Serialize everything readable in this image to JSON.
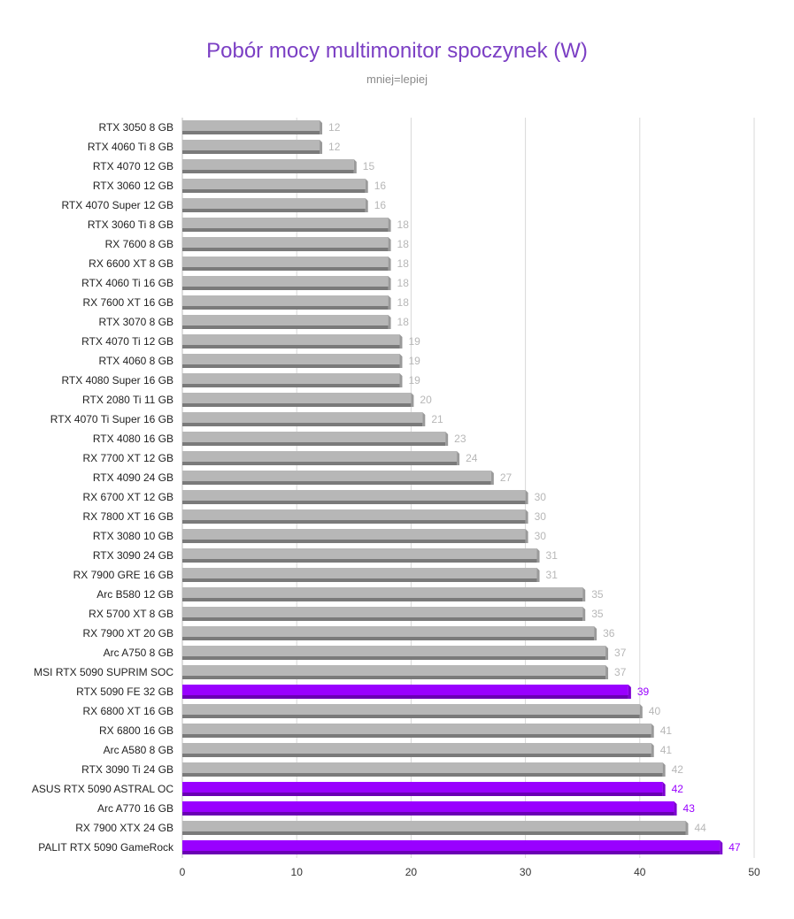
{
  "chart_data": {
    "type": "bar",
    "orientation": "horizontal",
    "title": "Pobór mocy multimonitor spoczynek (W)",
    "subtitle": "mniej=lepiej",
    "xlim": [
      0,
      50
    ],
    "x_ticks": [
      0,
      10,
      20,
      30,
      40,
      50
    ],
    "grid": true,
    "colors": {
      "default": "#b7b7b7",
      "highlight": "#9900ff",
      "label_default": "#b7b7b7",
      "label_highlight": "#9900ff"
    },
    "categories": [
      "RTX 3050 8 GB",
      "RTX 4060 Ti 8 GB",
      "RTX 4070 12 GB",
      "RTX 3060 12 GB",
      "RTX 4070 Super 12 GB",
      "RTX 3060 Ti 8 GB",
      "RX 7600 8 GB",
      "RX 6600 XT 8 GB",
      "RTX 4060 Ti 16 GB",
      "RX 7600 XT 16 GB",
      "RTX 3070 8 GB",
      "RTX 4070 Ti 12 GB",
      "RTX 4060 8 GB",
      "RTX 4080 Super 16 GB",
      "RTX 2080 Ti 11 GB",
      "RTX 4070 Ti Super 16 GB",
      "RTX 4080 16 GB",
      "RX 7700 XT 12 GB",
      "RTX 4090 24 GB",
      "RX 6700 XT 12 GB",
      "RX 7800 XT 16 GB",
      "RTX 3080 10 GB",
      "RTX 3090 24 GB",
      "RX 7900 GRE 16 GB",
      "Arc B580 12 GB",
      "RX 5700 XT 8 GB",
      "RX 7900 XT 20 GB",
      "Arc A750 8 GB",
      "MSI RTX 5090 SUPRIM SOC",
      "RTX 5090 FE 32 GB",
      "RX 6800 XT 16 GB",
      "RX 6800 16 GB",
      "Arc A580 8 GB",
      "RTX 3090 Ti 24 GB",
      "ASUS RTX 5090 ASTRAL OC",
      "Arc A770 16 GB",
      "RX 7900 XTX 24 GB",
      "PALIT RTX 5090 GameRock"
    ],
    "values": [
      12,
      12,
      15,
      16,
      16,
      18,
      18,
      18,
      18,
      18,
      18,
      19,
      19,
      19,
      20,
      21,
      23,
      24,
      27,
      30,
      30,
      30,
      31,
      31,
      35,
      35,
      36,
      37,
      37,
      39,
      40,
      41,
      41,
      42,
      42,
      43,
      44,
      47
    ],
    "highlighted": [
      "RTX 5090 FE 32 GB",
      "ASUS RTX 5090 ASTRAL OC",
      "Arc A770 16 GB",
      "PALIT RTX 5090 GameRock"
    ]
  }
}
